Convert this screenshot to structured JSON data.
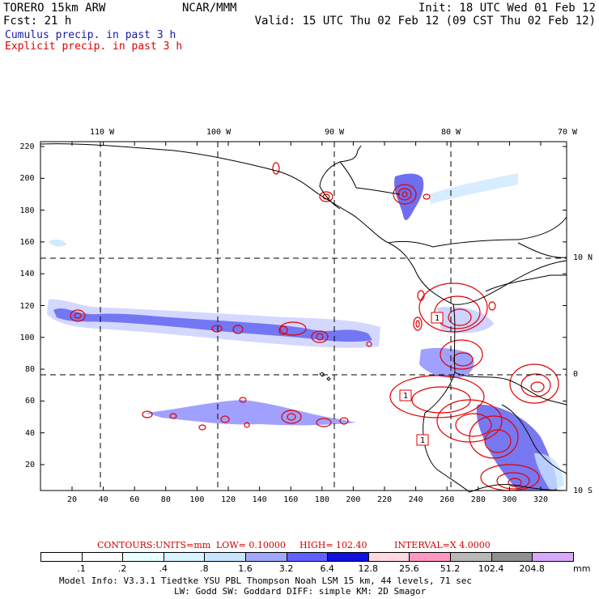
{
  "header": {
    "model": "TORERO  15km ARW",
    "org": "NCAR/MMM",
    "init": "Init: 18 UTC Wed 01 Feb 12",
    "fcst": "Fcst:   21 h",
    "valid": "Valid: 15 UTC Thu 02 Feb 12 (09 CST Thu 02 Feb 12)",
    "legend_cumulus": "Cumulus precip. in past 3 h",
    "legend_explicit": "Explicit precip. in past 3 h"
  },
  "colors": {
    "cumulus": "#1a1aa6",
    "explicit": "#e00000",
    "contour_text": "#d00000"
  },
  "map": {
    "lon_labels": [
      "110 W",
      "100 W",
      "90 W",
      "80 W",
      "70 W"
    ],
    "lat_labels": [
      "10 N",
      "0",
      "10 S"
    ],
    "x_ticks": [
      "20",
      "40",
      "60",
      "80",
      "100",
      "120",
      "140",
      "160",
      "180",
      "200",
      "220",
      "240",
      "260",
      "280",
      "300",
      "320"
    ],
    "y_ticks": [
      "220",
      "200",
      "180",
      "160",
      "140",
      "120",
      "100",
      "80",
      "60",
      "40",
      "20"
    ],
    "contour_labels": [
      "1",
      "1",
      "1"
    ]
  },
  "contour_info": {
    "label": "CONTOURS:",
    "units": "UNITS=mm",
    "low": "LOW= 0.10000",
    "high": "HIGH=  102.40",
    "interval": "INTERVAL=X  4.0000"
  },
  "colorbar": {
    "unit": "mm",
    "levels": [
      ".1",
      ".2",
      ".4",
      ".8",
      "1.6",
      "3.2",
      "6.4",
      "12.8",
      "25.6",
      "51.2",
      "102.4",
      "204.8"
    ],
    "colors": [
      "#ffffff",
      "#ffffff",
      "#e8ffff",
      "#d8f4ff",
      "#c8e4ff",
      "#a0a8ff",
      "#6060ff",
      "#1010e0",
      "#ffd8e0",
      "#ff98c0",
      "#b8b8b8",
      "#909090",
      "#d8a8ff"
    ]
  },
  "footer": {
    "line1": "Model Info: V3.3.1    Tiedtke YSU PBL  Thompson    Noah LSM  15 km,   44 levels,   71 sec",
    "line2": "LW: Godd SW: Goddard DIFF: simple KM: 2D Smagor"
  }
}
